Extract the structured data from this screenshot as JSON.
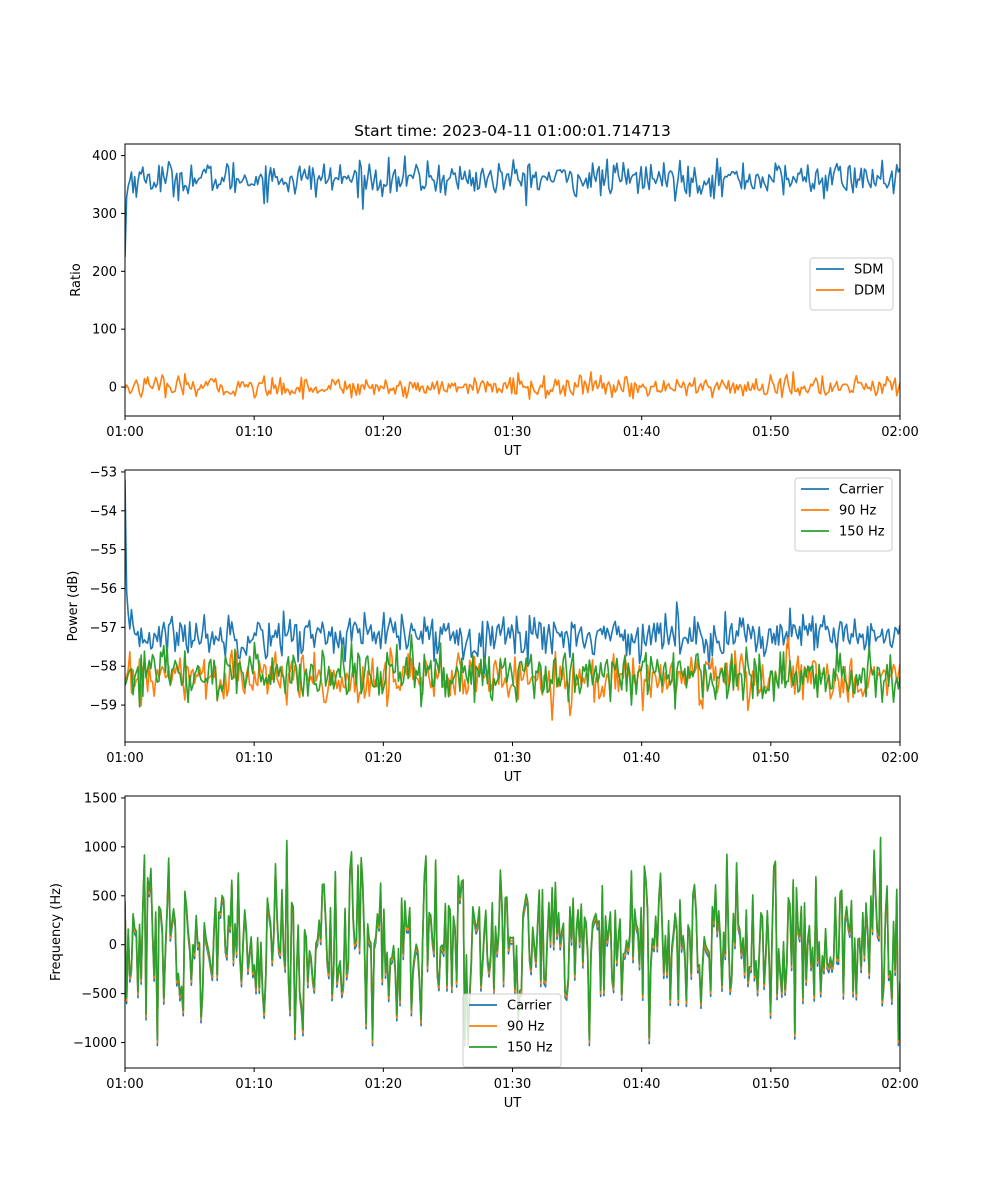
{
  "figure": {
    "title": "Start time: 2023-04-11 01:00:01.714713"
  },
  "chart_data": [
    {
      "type": "line",
      "title": "Start time: 2023-04-11 01:00:01.714713",
      "xlabel": "UT",
      "ylabel": "Ratio",
      "x_ticks": [
        "01:00",
        "01:10",
        "01:20",
        "01:30",
        "01:40",
        "01:50",
        "02:00"
      ],
      "xlim": [
        "01:00",
        "02:00"
      ],
      "ylim": [
        -50,
        420
      ],
      "y_ticks": [
        0,
        100,
        200,
        300,
        400
      ],
      "grid": false,
      "legend_position": "center-right",
      "n_points": 480,
      "series": [
        {
          "name": "SDM",
          "color": "#1f77b4",
          "start_value": 225,
          "level": 360,
          "noise": 15
        },
        {
          "name": "DDM",
          "color": "#ff7f0e",
          "start_value": -3,
          "level": 0,
          "noise": 9
        }
      ]
    },
    {
      "type": "line",
      "title": "",
      "xlabel": "UT",
      "ylabel": "Power (dB)",
      "x_ticks": [
        "01:00",
        "01:10",
        "01:20",
        "01:30",
        "01:40",
        "01:50",
        "02:00"
      ],
      "xlim": [
        "01:00",
        "02:00"
      ],
      "ylim": [
        -59.95,
        -52.95
      ],
      "y_ticks": [
        -59,
        -58,
        -57,
        -56,
        -55,
        -54,
        -53
      ],
      "grid": false,
      "legend_position": "top-right",
      "n_points": 480,
      "series": [
        {
          "name": "Carrier",
          "color": "#1f77b4",
          "start_value": -53.2,
          "level": -57.2,
          "noise": 0.28
        },
        {
          "name": "90 Hz",
          "color": "#ff7f0e",
          "start_value": -58.4,
          "level": -58.3,
          "noise": 0.32
        },
        {
          "name": "150 Hz",
          "color": "#2ca02c",
          "start_value": -58.5,
          "level": -58.2,
          "noise": 0.35
        }
      ]
    },
    {
      "type": "line",
      "title": "",
      "xlabel": "UT",
      "ylabel": "Frequency (Hz)",
      "x_ticks": [
        "01:00",
        "01:10",
        "01:20",
        "01:30",
        "01:40",
        "01:50",
        "02:00"
      ],
      "xlim": [
        "01:00",
        "02:00"
      ],
      "ylim": [
        -1260,
        1520
      ],
      "y_ticks": [
        -1000,
        -500,
        0,
        500,
        1000,
        1500
      ],
      "grid": false,
      "legend_position": "bottom-center",
      "n_points": 480,
      "series": [
        {
          "name": "Carrier",
          "color": "#1f77b4",
          "start_value": 0,
          "level": 0,
          "noise": 380
        },
        {
          "name": "90 Hz",
          "color": "#ff7f0e",
          "start_value": 0,
          "level": 0,
          "noise": 380
        },
        {
          "name": "150 Hz",
          "color": "#2ca02c",
          "start_value": 0,
          "level": 0,
          "noise": 380
        }
      ]
    }
  ]
}
